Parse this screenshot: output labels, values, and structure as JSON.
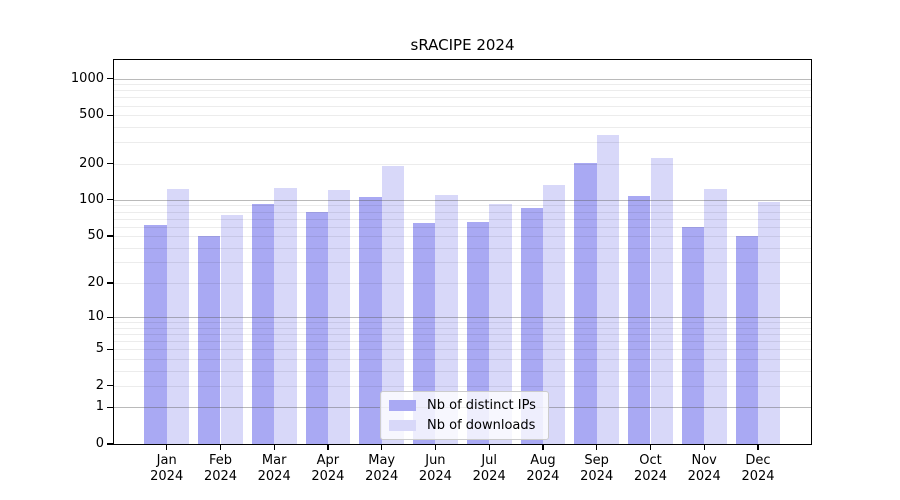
{
  "chart_data": {
    "type": "bar",
    "title": "sRACIPE 2024",
    "categories": [
      "Jan",
      "Feb",
      "Mar",
      "Apr",
      "May",
      "Jun",
      "Jul",
      "Aug",
      "Sep",
      "Oct",
      "Nov",
      "Dec"
    ],
    "category_year": "2024",
    "series": [
      {
        "name": "Nb of distinct IPs",
        "color": "#a9a9f3",
        "values": [
          62,
          50,
          92,
          80,
          106,
          64,
          66,
          85,
          202,
          108,
          60,
          50
        ]
      },
      {
        "name": "Nb of downloads",
        "color": "#d8d8f9",
        "values": [
          122,
          75,
          126,
          120,
          190,
          110,
          93,
          133,
          342,
          222,
          124,
          96
        ]
      }
    ],
    "xlabel": "",
    "ylabel": "",
    "yscale": "log1p",
    "yticks": [
      0,
      1,
      2,
      5,
      10,
      20,
      50,
      100,
      200,
      500,
      1000
    ],
    "ylim": [
      0,
      1420
    ],
    "grid": true,
    "legend_position": "lower center"
  }
}
